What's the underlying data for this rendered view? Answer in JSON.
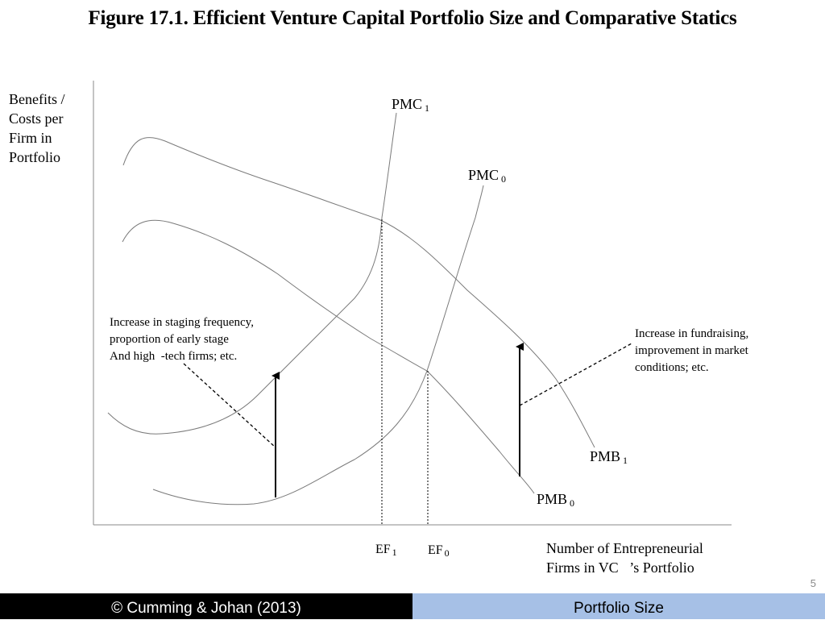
{
  "title": "Figure 17.1. Efficient Venture Capital Portfolio Size and Comparative Statics",
  "y_axis_label": "Benefits /\nCosts per\nFirm in\nPortfolio",
  "x_axis_label": "Number of Entrepreneurial\nFirms in VC   ’s Portfolio",
  "curves": {
    "pmc1": {
      "main": "PMC",
      "sub": "1"
    },
    "pmc0": {
      "main": "PMC",
      "sub": "0"
    },
    "pmb1": {
      "main": "PMB",
      "sub": "1"
    },
    "pmb0": {
      "main": "PMB",
      "sub": "0"
    }
  },
  "ticks": {
    "ef1": {
      "main": "EF",
      "sub": "1"
    },
    "ef0": {
      "main": "EF",
      "sub": "0"
    }
  },
  "annotations": {
    "left": "Increase in staging frequency,\nproportion of early stage\nAnd high  -tech firms; etc.",
    "right": "Increase in fundraising,\nimprovement in market\nconditions; etc."
  },
  "page_number": "5",
  "footer": {
    "left": "© Cumming & Johan (2013)",
    "right": "Portfolio Size"
  },
  "colors": {
    "footer_left_bg": "#000000",
    "footer_right_bg": "#a6c0e6",
    "curve_stroke": "#7a7a7a"
  }
}
